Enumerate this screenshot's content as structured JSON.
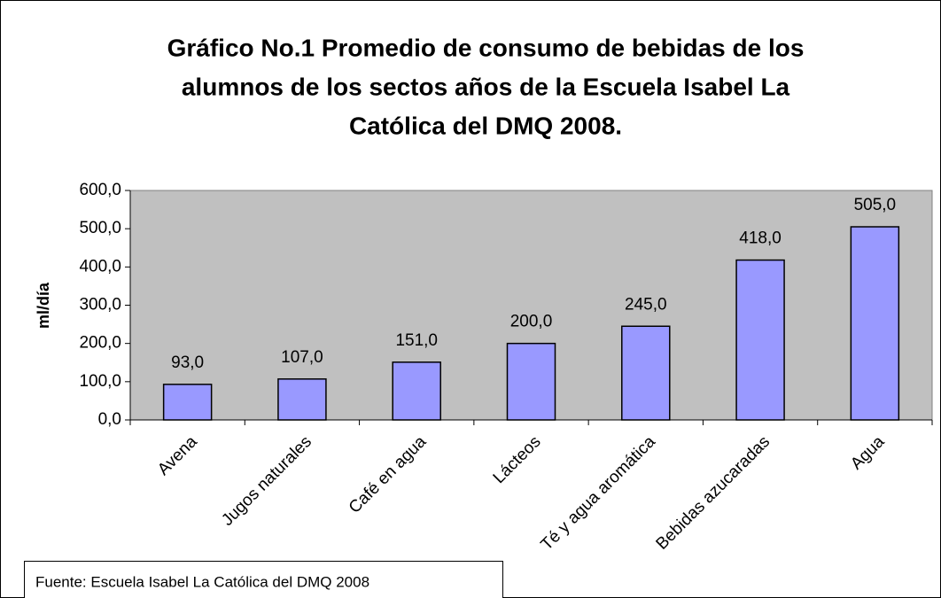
{
  "chart_data": {
    "type": "bar",
    "title": [
      "Gráfico No.1 Promedio de consumo de bebidas de los",
      "alumnos de los sectos años de la Escuela Isabel La",
      "Católica del DMQ 2008."
    ],
    "y_label": "ml/día",
    "categories": [
      "Avena",
      "Jugos naturales",
      "Café en agua",
      "Lácteos",
      "Té y agua aromática",
      "Bebidas azucaradas",
      "Agua"
    ],
    "values": [
      93,
      107,
      151,
      200,
      245,
      418,
      505
    ],
    "value_labels": [
      "93,0",
      "107,0",
      "151,0",
      "200,0",
      "245,0",
      "418,0",
      "505,0"
    ],
    "color": "#9999ff",
    "plot_background": "#c0c0c0",
    "ylim": [
      0,
      600
    ],
    "yticks": [
      {
        "value": 0,
        "label": "0,0"
      },
      {
        "value": 100,
        "label": "100,0"
      },
      {
        "value": 200,
        "label": "200,0"
      },
      {
        "value": 300,
        "label": "300,0"
      },
      {
        "value": 400,
        "label": "400,0"
      },
      {
        "value": 500,
        "label": "500,0"
      },
      {
        "value": 600,
        "label": "600,0"
      }
    ],
    "grid": false,
    "source": "Fuente: Escuela Isabel La Católica del DMQ 2008"
  }
}
